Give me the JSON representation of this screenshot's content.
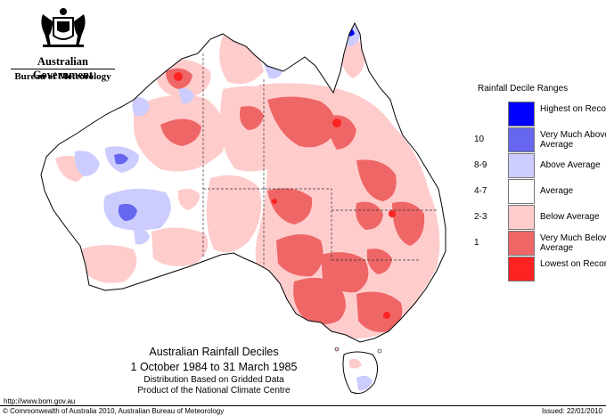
{
  "header": {
    "government": "Australian Government",
    "bureau": "Bureau of Meteorology"
  },
  "colors": {
    "highest": "#0000ff",
    "very_much_above": "#6666ee",
    "above": "#ccccff",
    "average": "#ffffff",
    "below": "#ffcccc",
    "very_much_below": "#ee6666",
    "lowest": "#ff2222"
  },
  "legend": {
    "title": "Rainfall Decile Ranges",
    "items": [
      {
        "code": "",
        "label": "Highest on Record",
        "color": "#0000ff"
      },
      {
        "code": "10",
        "label": "Very Much Above Average",
        "color": "#6666ee"
      },
      {
        "code": "8-9",
        "label": "Above Average",
        "color": "#ccccff"
      },
      {
        "code": "4-7",
        "label": "Average",
        "color": "#ffffff"
      },
      {
        "code": "2-3",
        "label": "Below Average",
        "color": "#ffcccc"
      },
      {
        "code": "1",
        "label": "Very Much Below Average",
        "color": "#ee6666"
      },
      {
        "code": "",
        "label": "Lowest on Record",
        "color": "#ff2222"
      }
    ]
  },
  "title": {
    "main": "Australian Rainfall Deciles",
    "dates": "1 October 1984 to 31 March 1985",
    "line1": "Distribution Based on Gridded Data",
    "line2": "Product of the National Climate Centre"
  },
  "footer": {
    "url": "http://www.bom.gov.au",
    "copyright": "© Commonwealth of Australia 2010, Australian Bureau of Meteorology",
    "issued": "Issued: 22/01/2010"
  }
}
